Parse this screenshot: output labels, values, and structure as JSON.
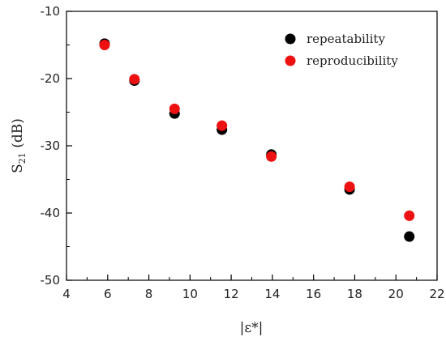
{
  "chart_data": {
    "type": "scatter",
    "xlabel": "|ε*|",
    "ylabel_main": "S",
    "ylabel_sub": "21",
    "ylabel_unit": " (dB)",
    "xlim": [
      4,
      22
    ],
    "ylim": [
      -50,
      -10
    ],
    "xticks": [
      4,
      6,
      8,
      10,
      12,
      14,
      16,
      18,
      20,
      22
    ],
    "yticks": [
      -10,
      -20,
      -30,
      -40,
      -50
    ],
    "grid": false,
    "legend_position": "top-right",
    "series": [
      {
        "name": "repeatability",
        "color": "#000000",
        "x": [
          5.85,
          7.3,
          9.25,
          11.55,
          13.95,
          17.75,
          20.65
        ],
        "y": [
          -14.8,
          -20.3,
          -25.2,
          -27.6,
          -31.3,
          -36.5,
          -43.5
        ]
      },
      {
        "name": "reproducibility",
        "color": "#ee1111",
        "x": [
          5.85,
          7.3,
          9.25,
          11.55,
          13.95,
          17.75,
          20.65
        ],
        "y": [
          -15.0,
          -20.1,
          -24.5,
          -27.0,
          -31.6,
          -36.1,
          -40.4
        ]
      }
    ]
  }
}
